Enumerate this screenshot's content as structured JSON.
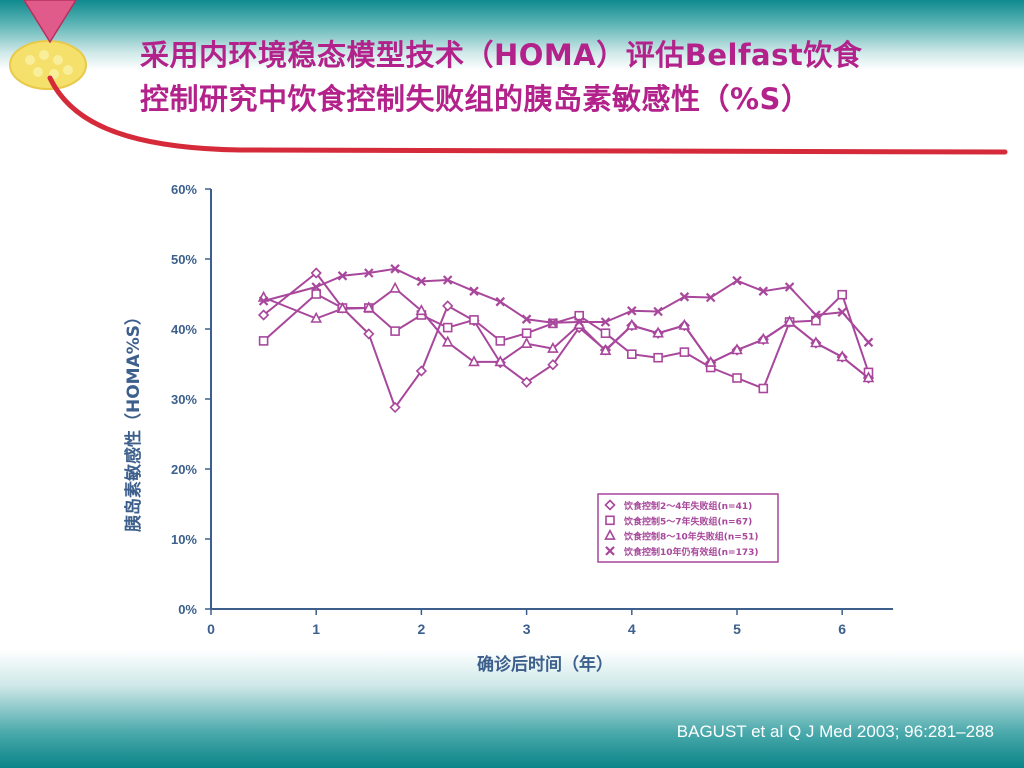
{
  "slide": {
    "title_line1": "采用内环境稳态模型技术（HOMA）评估Belfast饮食",
    "title_line2": "控制研究中饮食控制失败组的胰岛素敏感性（%S）",
    "citation": "BAGUST et al  Q J Med 2003; 96:281–288"
  },
  "colors": {
    "title": "#b2228a",
    "series": "#a8479b",
    "axis": "#3c5f8c",
    "legend_border": "#a8479b",
    "band": "#0e8a8e",
    "underline": "#d42a3a"
  },
  "chart_data": {
    "type": "line",
    "xlabel": "确诊后时间（年）",
    "ylabel": "胰岛素敏感性（HOMA%S）",
    "xlim": [
      0,
      6.5
    ],
    "ylim": [
      0,
      60
    ],
    "xticks": [
      "0",
      "1",
      "2",
      "3",
      "4",
      "5",
      "6"
    ],
    "yticks": [
      "0%",
      "10%",
      "20%",
      "30%",
      "40%",
      "50%",
      "60%"
    ],
    "legend_position": "bottom-right",
    "grid": false,
    "x": [
      0.5,
      1,
      1.25,
      1.5,
      1.75,
      2,
      2.25,
      2.5,
      2.75,
      3,
      3.25,
      3.5,
      3.75,
      4,
      4.25,
      4.5,
      4.75,
      5,
      5.25,
      5.5,
      5.75,
      6,
      6.25
    ],
    "series": [
      {
        "name": "饮食控制2～4年失败组(n=41)",
        "marker": "diamond",
        "values": [
          42,
          48,
          43,
          39.3,
          28.8,
          34,
          43.3,
          41.2,
          35.2,
          32.4,
          34.9,
          40.2,
          37,
          40.5,
          39.4,
          40.5,
          35.2,
          37,
          38.5,
          41,
          38,
          36,
          33
        ]
      },
      {
        "name": "饮食控制5～7年失败组(n=67)",
        "marker": "square",
        "values": [
          38.3,
          45,
          43,
          43,
          39.7,
          42,
          40.2,
          41.3,
          38.3,
          39.4,
          40.8,
          41.9,
          39.4,
          36.4,
          35.9,
          36.7,
          34.5,
          33,
          31.5,
          41,
          41.2,
          44.9,
          33.8
        ]
      },
      {
        "name": "饮食控制8～10年失败组(n=51)",
        "marker": "triangle",
        "values": [
          44.5,
          41.5,
          42.9,
          43,
          45.8,
          42.6,
          38.1,
          35.3,
          35.3,
          37.9,
          37.2,
          40.6,
          36.9,
          40.5,
          39.4,
          40.5,
          35.2,
          37,
          38.5,
          41,
          38,
          36,
          33
        ]
      },
      {
        "name": "饮食控制10年仍有效组(n=173)",
        "marker": "x",
        "values": [
          44,
          46,
          47.6,
          48,
          48.6,
          46.8,
          47,
          45.4,
          43.9,
          41.4,
          40.9,
          41,
          41,
          42.6,
          42.5,
          44.6,
          44.5,
          46.9,
          45.4,
          46,
          42,
          42.4,
          38.1
        ]
      }
    ]
  }
}
